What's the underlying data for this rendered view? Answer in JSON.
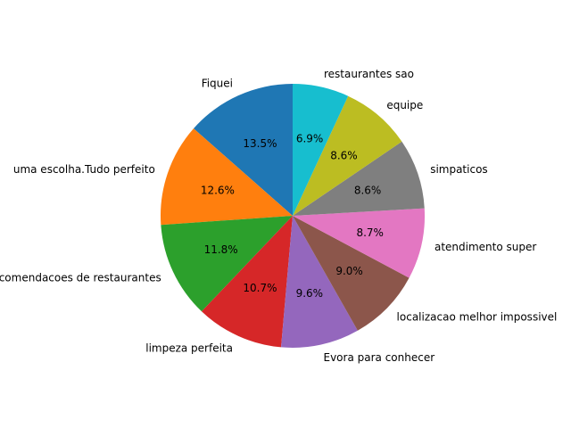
{
  "chart_data": {
    "type": "pie",
    "start_angle_deg": 90,
    "direction": "counterclockwise",
    "slices": [
      {
        "label": "Fiquei",
        "value": 13.5,
        "pct_label": "13.5%",
        "color": "#1f77b4"
      },
      {
        "label": "uma escolha.Tudo perfeito",
        "value": 12.6,
        "pct_label": "12.6%",
        "color": "#ff7f0e"
      },
      {
        "label": "recomendacoes de restaurantes",
        "value": 11.8,
        "pct_label": "11.8%",
        "color": "#2ca02c"
      },
      {
        "label": "limpeza perfeita",
        "value": 10.7,
        "pct_label": "10.7%",
        "color": "#d62728"
      },
      {
        "label": "Evora para conhecer",
        "value": 9.6,
        "pct_label": "9.6%",
        "color": "#9467bd"
      },
      {
        "label": "localizacao melhor impossivel",
        "value": 9.0,
        "pct_label": "9.0%",
        "color": "#8c564b"
      },
      {
        "label": "atendimento super",
        "value": 8.7,
        "pct_label": "8.7%",
        "color": "#e377c2"
      },
      {
        "label": "simpaticos",
        "value": 8.6,
        "pct_label": "8.6%",
        "color": "#7f7f7f"
      },
      {
        "label": "equipe",
        "value": 8.6,
        "pct_label": "8.6%",
        "color": "#bcbd22"
      },
      {
        "label": "restaurantes sao",
        "value": 6.9,
        "pct_label": "6.9%",
        "color": "#17becf"
      }
    ]
  }
}
